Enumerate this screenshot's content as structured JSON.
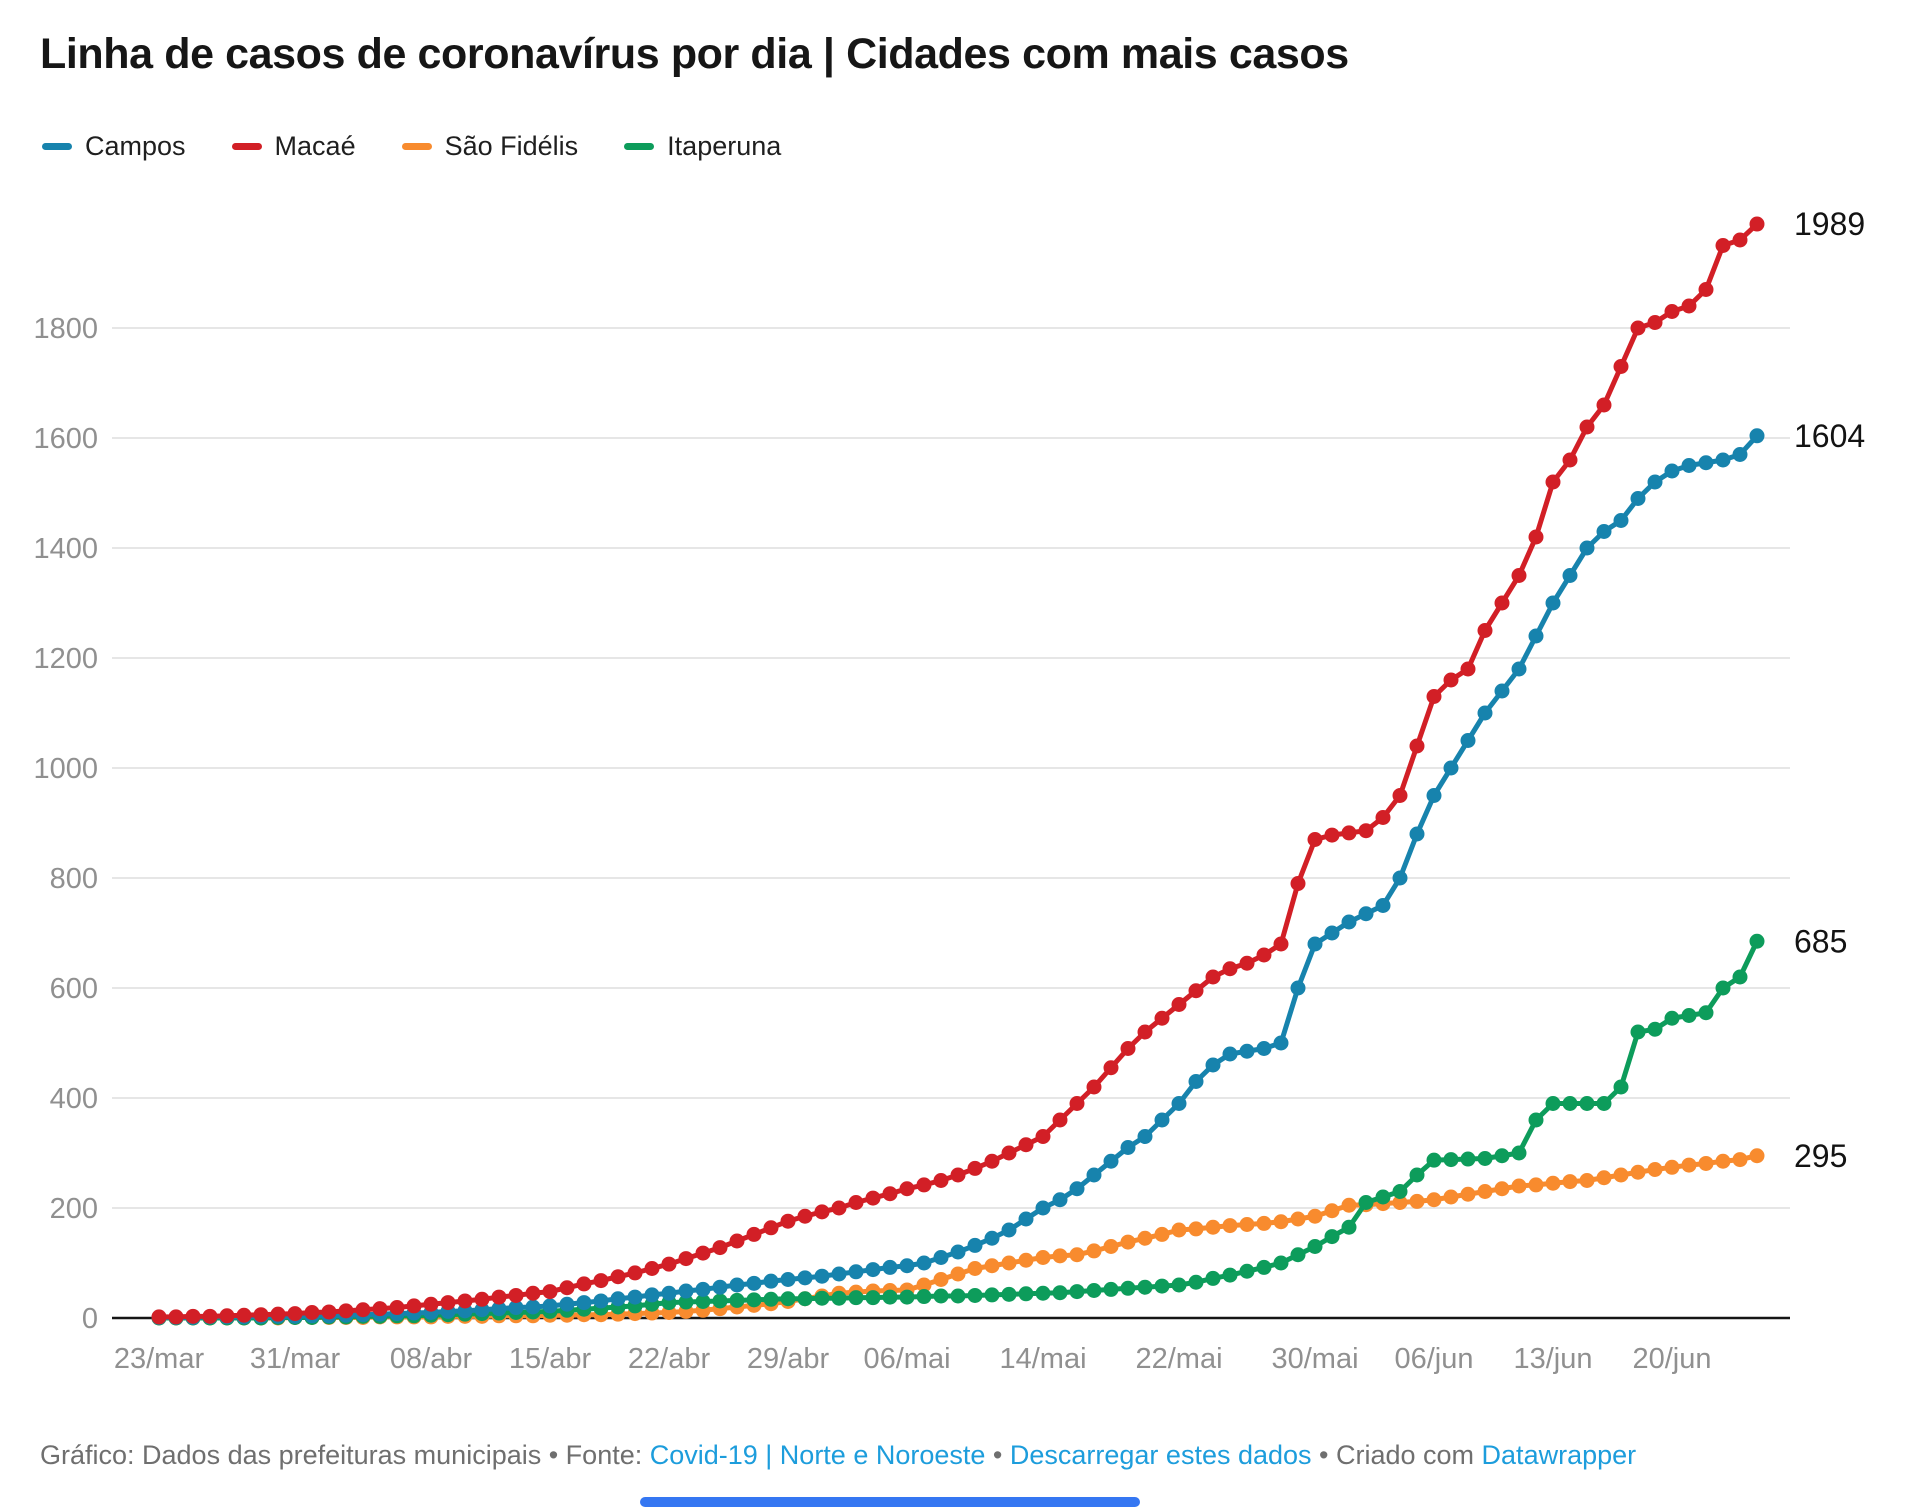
{
  "title": "Linha de casos de coronavírus por dia | Cidades com mais casos",
  "footer": {
    "prefix": "Gráfico: Dados das prefeituras municipais • Fonte: ",
    "link_source": "Covid-19 | Norte e Noroeste",
    "sep1": " • ",
    "link_download": "Descarregar estes dados",
    "sep2": " • ",
    "created_with": "Criado com ",
    "link_brand": "Datawrapper"
  },
  "colors": {
    "link": "#1d9ddc",
    "title_text": "#161616",
    "axis_text": "#909090",
    "grid": "#e6e6e6",
    "baseline": "#151515",
    "end_label_text": "#131313",
    "progress_bar": "#3577f2"
  },
  "chart_data": {
    "type": "line",
    "title": "Linha de casos de coronavírus por dia | Cidades com mais casos",
    "xlabel": "",
    "ylabel": "",
    "ylim": [
      0,
      1989
    ],
    "grid": true,
    "legend_position": "top-left",
    "y_ticks": [
      0,
      200,
      400,
      600,
      800,
      1000,
      1200,
      1400,
      1600,
      1800
    ],
    "x": [
      "23/mar",
      "24/mar",
      "25/mar",
      "26/mar",
      "27/mar",
      "28/mar",
      "29/mar",
      "30/mar",
      "31/mar",
      "01/abr",
      "02/abr",
      "03/abr",
      "04/abr",
      "05/abr",
      "06/abr",
      "07/abr",
      "08/abr",
      "09/abr",
      "10/abr",
      "11/abr",
      "12/abr",
      "13/abr",
      "14/abr",
      "15/abr",
      "16/abr",
      "17/abr",
      "18/abr",
      "19/abr",
      "20/abr",
      "21/abr",
      "22/abr",
      "23/abr",
      "24/abr",
      "25/abr",
      "26/abr",
      "27/abr",
      "28/abr",
      "29/abr",
      "30/abr",
      "01/mai",
      "02/mai",
      "03/mai",
      "04/mai",
      "05/mai",
      "06/mai",
      "07/mai",
      "08/mai",
      "09/mai",
      "10/mai",
      "11/mai",
      "12/mai",
      "13/mai",
      "14/mai",
      "15/mai",
      "16/mai",
      "17/mai",
      "18/mai",
      "19/mai",
      "20/mai",
      "21/mai",
      "22/mai",
      "23/mai",
      "24/mai",
      "25/mai",
      "26/mai",
      "27/mai",
      "28/mai",
      "29/mai",
      "30/mai",
      "31/mai",
      "01/jun",
      "02/jun",
      "03/jun",
      "04/jun",
      "05/jun",
      "06/jun",
      "07/jun",
      "08/jun",
      "09/jun",
      "10/jun",
      "11/jun",
      "12/jun",
      "13/jun",
      "14/jun",
      "15/jun",
      "16/jun",
      "17/jun",
      "18/jun",
      "19/jun",
      "20/jun",
      "21/jun",
      "22/jun",
      "23/jun",
      "24/jun",
      "25/jun"
    ],
    "x_tick_indices": [
      0,
      8,
      16,
      23,
      30,
      37,
      44,
      52,
      60,
      68,
      75,
      82,
      89
    ],
    "x_tick_labels": [
      "23/mar",
      "31/mar",
      "08/abr",
      "15/abr",
      "22/abr",
      "29/abr",
      "06/mai",
      "14/mai",
      "22/mai",
      "30/mai",
      "06/jun",
      "13/jun",
      "20/jun"
    ],
    "draw_order": [
      2,
      3,
      0,
      1
    ],
    "series": [
      {
        "name": "Campos",
        "color": "#1783ad",
        "end_label": "1604",
        "values": [
          1,
          1,
          1,
          2,
          2,
          2,
          3,
          3,
          3,
          4,
          4,
          5,
          6,
          7,
          8,
          9,
          10,
          12,
          13,
          15,
          17,
          19,
          20,
          22,
          25,
          28,
          31,
          35,
          38,
          42,
          45,
          49,
          52,
          56,
          60,
          63,
          67,
          70,
          73,
          76,
          80,
          84,
          88,
          92,
          95,
          100,
          110,
          120,
          132,
          145,
          160,
          180,
          200,
          215,
          235,
          260,
          285,
          310,
          330,
          360,
          390,
          430,
          460,
          480,
          485,
          490,
          500,
          600,
          680,
          700,
          720,
          735,
          750,
          800,
          880,
          950,
          1000,
          1050,
          1100,
          1140,
          1180,
          1240,
          1300,
          1350,
          1400,
          1430,
          1450,
          1490,
          1520,
          1540,
          1550,
          1555,
          1560,
          1570,
          1604
        ]
      },
      {
        "name": "Macaé",
        "color": "#d21f26",
        "end_label": "1989",
        "values": [
          2,
          2,
          3,
          3,
          4,
          5,
          6,
          7,
          8,
          10,
          11,
          13,
          15,
          17,
          19,
          22,
          25,
          28,
          31,
          34,
          38,
          41,
          45,
          48,
          55,
          62,
          68,
          75,
          82,
          90,
          98,
          108,
          118,
          128,
          140,
          152,
          164,
          176,
          185,
          193,
          200,
          210,
          218,
          226,
          235,
          242,
          250,
          260,
          272,
          285,
          300,
          315,
          330,
          360,
          390,
          420,
          455,
          490,
          520,
          545,
          570,
          595,
          620,
          635,
          645,
          660,
          680,
          790,
          870,
          878,
          882,
          886,
          910,
          950,
          1040,
          1130,
          1160,
          1180,
          1250,
          1300,
          1350,
          1420,
          1520,
          1560,
          1620,
          1660,
          1730,
          1800,
          1810,
          1830,
          1840,
          1870,
          1950,
          1960,
          1989
        ]
      },
      {
        "name": "São Fidélis",
        "color": "#f88b2e",
        "end_label": "295",
        "values": [
          0,
          0,
          0,
          0,
          0,
          0,
          0,
          0,
          1,
          1,
          1,
          1,
          1,
          2,
          2,
          2,
          2,
          3,
          3,
          3,
          4,
          4,
          4,
          5,
          5,
          6,
          6,
          7,
          8,
          9,
          10,
          12,
          14,
          17,
          20,
          23,
          26,
          30,
          35,
          40,
          45,
          47,
          49,
          50,
          51,
          60,
          70,
          80,
          90,
          95,
          100,
          105,
          110,
          113,
          115,
          122,
          130,
          138,
          145,
          152,
          160,
          162,
          165,
          168,
          170,
          172,
          175,
          180,
          185,
          195,
          205,
          206,
          208,
          210,
          212,
          215,
          220,
          225,
          230,
          235,
          240,
          242,
          245,
          248,
          250,
          255,
          260,
          265,
          270,
          274,
          278,
          281,
          285,
          288,
          295
        ]
      },
      {
        "name": "Itaperuna",
        "color": "#0d9c5b",
        "end_label": "685",
        "values": [
          0,
          0,
          0,
          0,
          0,
          0,
          0,
          1,
          1,
          1,
          2,
          2,
          3,
          3,
          4,
          4,
          5,
          6,
          7,
          8,
          9,
          10,
          11,
          12,
          14,
          16,
          18,
          20,
          22,
          25,
          28,
          29,
          30,
          31,
          32,
          33,
          34,
          35,
          35,
          36,
          36,
          37,
          37,
          38,
          38,
          39,
          40,
          40,
          41,
          42,
          43,
          44,
          45,
          46,
          48,
          50,
          52,
          54,
          56,
          58,
          60,
          65,
          72,
          78,
          85,
          92,
          100,
          115,
          130,
          148,
          165,
          210,
          220,
          230,
          260,
          287,
          288,
          289,
          290,
          295,
          300,
          360,
          390,
          390,
          390,
          390,
          420,
          520,
          525,
          545,
          550,
          555,
          600,
          620,
          685
        ]
      }
    ]
  }
}
